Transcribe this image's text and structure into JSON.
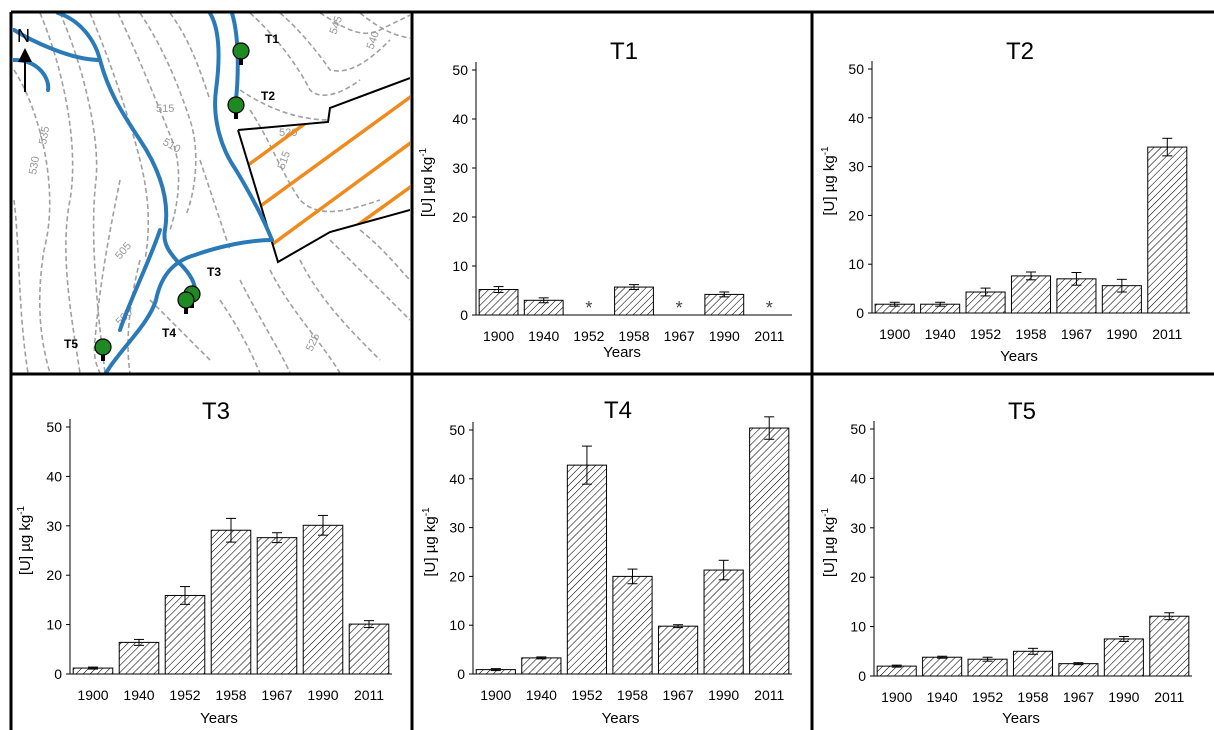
{
  "map": {
    "north": "N",
    "sites": [
      {
        "label": "T1"
      },
      {
        "label": "T2"
      },
      {
        "label": "T3"
      },
      {
        "label": "T4"
      },
      {
        "label": "T5"
      }
    ],
    "contours": [
      "545",
      "540",
      "535",
      "530",
      "515",
      "510",
      "520",
      "515",
      "505",
      "500",
      "525"
    ]
  },
  "chart_data": [
    {
      "type": "bar",
      "title": "T1",
      "xlabel": "Years",
      "ylabel": "[U] µg kg-1",
      "categories": [
        "1900",
        "1940",
        "1952",
        "1958",
        "1967",
        "1990",
        "2011"
      ],
      "values": [
        5.2,
        3.0,
        null,
        5.7,
        null,
        4.2,
        null
      ],
      "errors": [
        0.6,
        0.5,
        null,
        0.5,
        null,
        0.5,
        null
      ],
      "missing_marker": "*",
      "ylim": [
        0,
        50
      ],
      "yticks": [
        0,
        10,
        20,
        30,
        40,
        50
      ]
    },
    {
      "type": "bar",
      "title": "T2",
      "xlabel": "Years",
      "ylabel": "[U] µg kg-1",
      "categories": [
        "1900",
        "1940",
        "1952",
        "1958",
        "1967",
        "1990",
        "2011"
      ],
      "values": [
        1.8,
        1.8,
        4.3,
        7.6,
        7.0,
        5.6,
        34.0
      ],
      "errors": [
        0.4,
        0.4,
        0.8,
        0.8,
        1.3,
        1.3,
        1.8
      ],
      "ylim": [
        0,
        50
      ],
      "yticks": [
        0,
        10,
        20,
        30,
        40,
        50
      ]
    },
    {
      "type": "bar",
      "title": "T3",
      "xlabel": "Years",
      "ylabel": "[U] µg kg-1",
      "categories": [
        "1900",
        "1940",
        "1952",
        "1958",
        "1967",
        "1990",
        "2011"
      ],
      "values": [
        1.2,
        6.4,
        15.9,
        29.1,
        27.6,
        30.1,
        10.1
      ],
      "errors": [
        0.2,
        0.6,
        1.8,
        2.4,
        1.0,
        2.0,
        0.7
      ],
      "ylim": [
        0,
        50
      ],
      "yticks": [
        0,
        10,
        20,
        30,
        40,
        50
      ]
    },
    {
      "type": "bar",
      "title": "T4",
      "xlabel": "Years",
      "ylabel": "[U] µg kg-1",
      "categories": [
        "1900",
        "1940",
        "1952",
        "1958",
        "1967",
        "1990",
        "2011"
      ],
      "values": [
        0.9,
        3.3,
        42.8,
        20.0,
        9.8,
        21.3,
        50.4
      ],
      "errors": [
        0.2,
        0.2,
        3.9,
        1.5,
        0.3,
        2.0,
        2.3
      ],
      "ylim": [
        0,
        50
      ],
      "yticks": [
        0,
        10,
        20,
        30,
        40,
        50
      ]
    },
    {
      "type": "bar",
      "title": "T5",
      "xlabel": "Years",
      "ylabel": "[U] µg kg-1",
      "categories": [
        "1900",
        "1940",
        "1952",
        "1958",
        "1967",
        "1990",
        "2011"
      ],
      "values": [
        2.0,
        3.8,
        3.4,
        5.0,
        2.5,
        7.5,
        12.1
      ],
      "errors": [
        0.2,
        0.2,
        0.4,
        0.6,
        0.2,
        0.5,
        0.7
      ],
      "ylim": [
        0,
        50
      ],
      "yticks": [
        0,
        10,
        20,
        30,
        40,
        50
      ]
    }
  ],
  "colors": {
    "river": "#2a7ab8",
    "hatch_zone": "#f08a1c",
    "tree": "#1f8a24",
    "contour": "#a0a0a0",
    "bar_fill_pattern": "#000000"
  }
}
